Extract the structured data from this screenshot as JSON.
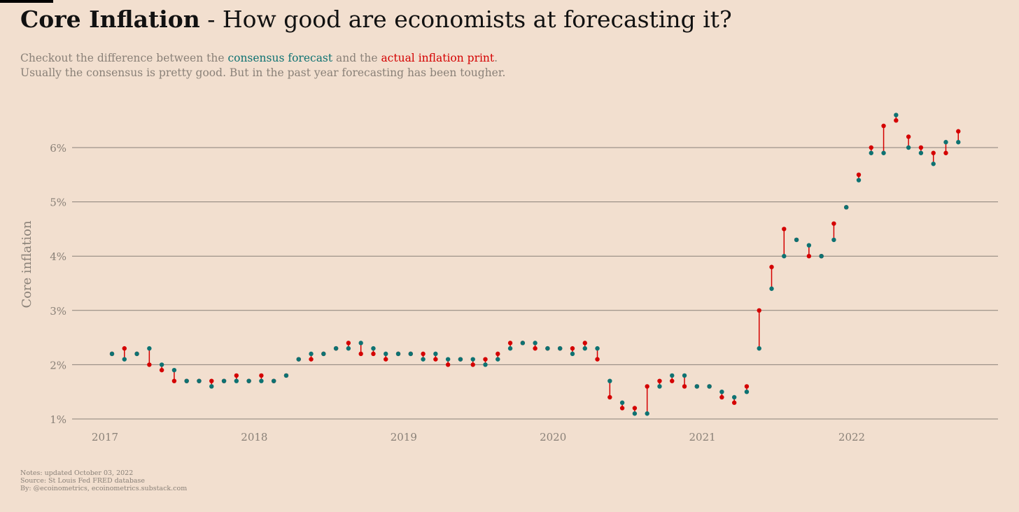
{
  "header": {
    "title_bold": "Core Inflation",
    "title_rest": " - How good are economists at forecasting it?",
    "subtitle_1a": "Checkout the difference between the ",
    "subtitle_1b": "consensus forecast",
    "subtitle_1c": " and the ",
    "subtitle_1d": "actual inflation print",
    "subtitle_1e": ".",
    "subtitle_2": "Usually the consensus is pretty good. But in the past year forecasting has been tougher."
  },
  "footer": {
    "notes": "Notes: updated October 03, 2022",
    "source": "Source: St Louis Fed FRED database",
    "by": "By: @ecoinometrics, ecoinometrics.substack.com"
  },
  "colors": {
    "background": "#f2dfcf",
    "consensus": "#0e7272",
    "actual": "#d40000",
    "grid": "#8a8178",
    "text_muted": "#8a8178"
  },
  "chart_data": {
    "type": "scatter",
    "ylabel": "Core inflation",
    "xlabel": "",
    "y_ticks": [
      "1%",
      "2%",
      "3%",
      "4%",
      "5%",
      "6%"
    ],
    "y_tick_values": [
      1,
      2,
      3,
      4,
      5,
      6
    ],
    "x_ticks": [
      "2017",
      "2018",
      "2019",
      "2020",
      "2021",
      "2022"
    ],
    "ylim": [
      1,
      6.6
    ],
    "xlim": [
      "2016-10",
      "2022-12"
    ],
    "grid": "horizontal",
    "legend": "none",
    "x": [
      "2017-01",
      "2017-02",
      "2017-03",
      "2017-04",
      "2017-05",
      "2017-06",
      "2017-07",
      "2017-08",
      "2017-09",
      "2017-10",
      "2017-11",
      "2017-12",
      "2018-01",
      "2018-02",
      "2018-03",
      "2018-04",
      "2018-05",
      "2018-06",
      "2018-07",
      "2018-08",
      "2018-09",
      "2018-10",
      "2018-11",
      "2018-12",
      "2019-01",
      "2019-02",
      "2019-03",
      "2019-04",
      "2019-05",
      "2019-06",
      "2019-07",
      "2019-08",
      "2019-09",
      "2019-10",
      "2019-11",
      "2019-12",
      "2020-01",
      "2020-02",
      "2020-03",
      "2020-04",
      "2020-05",
      "2020-06",
      "2020-07",
      "2020-08",
      "2020-09",
      "2020-10",
      "2020-11",
      "2020-12",
      "2021-01",
      "2021-02",
      "2021-03",
      "2021-04",
      "2021-05",
      "2021-06",
      "2021-07",
      "2021-08",
      "2021-09",
      "2021-10",
      "2021-11",
      "2021-12",
      "2022-01",
      "2022-02",
      "2022-03",
      "2022-04",
      "2022-05",
      "2022-06",
      "2022-07",
      "2022-08",
      "2022-09"
    ],
    "series": [
      {
        "key": "consensus",
        "values": [
          2.2,
          2.1,
          2.2,
          2.3,
          2.0,
          1.9,
          1.7,
          1.7,
          1.6,
          1.7,
          1.7,
          1.7,
          1.7,
          1.7,
          1.8,
          2.1,
          2.2,
          2.2,
          2.3,
          2.3,
          2.4,
          2.3,
          2.2,
          2.2,
          2.2,
          2.1,
          2.2,
          2.1,
          2.1,
          2.1,
          2.0,
          2.1,
          2.3,
          2.4,
          2.4,
          2.3,
          2.3,
          2.2,
          2.3,
          2.3,
          1.7,
          1.3,
          1.1,
          1.1,
          1.6,
          1.8,
          1.8,
          1.6,
          1.6,
          1.5,
          1.4,
          1.5,
          2.3,
          3.4,
          4.0,
          4.3,
          4.2,
          4.0,
          4.3,
          4.9,
          5.4,
          5.9,
          5.9,
          6.6,
          6.0,
          5.9,
          5.7,
          6.1,
          6.1
        ]
      },
      {
        "key": "actual",
        "values": [
          2.2,
          2.3,
          2.2,
          2.0,
          1.9,
          1.7,
          1.7,
          1.7,
          1.7,
          1.7,
          1.8,
          1.7,
          1.8,
          1.7,
          1.8,
          2.1,
          2.1,
          2.2,
          2.3,
          2.4,
          2.2,
          2.2,
          2.1,
          2.2,
          2.2,
          2.2,
          2.1,
          2.0,
          2.1,
          2.0,
          2.1,
          2.2,
          2.4,
          2.4,
          2.3,
          2.3,
          2.3,
          2.3,
          2.4,
          2.1,
          1.4,
          1.2,
          1.2,
          1.6,
          1.7,
          1.7,
          1.6,
          1.6,
          1.6,
          1.4,
          1.3,
          1.6,
          3.0,
          3.8,
          4.5,
          4.3,
          4.0,
          4.0,
          4.6,
          4.9,
          5.5,
          6.0,
          6.4,
          6.5,
          6.2,
          6.0,
          5.9,
          5.9,
          6.3
        ]
      }
    ]
  }
}
